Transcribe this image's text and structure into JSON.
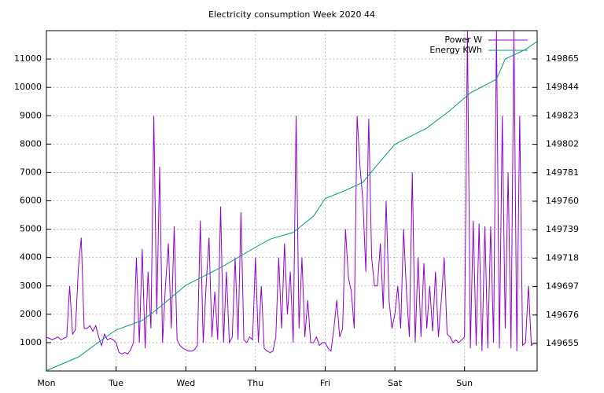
{
  "chart_data": {
    "type": "line",
    "title": "Electricity consumption Week 2020 44",
    "xlim": [
      0,
      169
    ],
    "xticks": [
      {
        "value": 0,
        "label": "Mon"
      },
      {
        "value": 24,
        "label": "Tue"
      },
      {
        "value": 48,
        "label": "Wed"
      },
      {
        "value": 72,
        "label": "Thu"
      },
      {
        "value": 96,
        "label": "Fri"
      },
      {
        "value": 120,
        "label": "Sat"
      },
      {
        "value": 144,
        "label": "Sun"
      }
    ],
    "ylim": [
      0,
      12000
    ],
    "yticks": [
      1000,
      2000,
      3000,
      4000,
      5000,
      6000,
      7000,
      8000,
      9000,
      10000,
      11000
    ],
    "y2lim": [
      149634.7,
      149885.9
    ],
    "y2ticks": [
      149655,
      149676,
      149697,
      149718,
      149739,
      149760,
      149781,
      149802,
      149823,
      149844,
      149865
    ],
    "grid": true,
    "legend": "top-right",
    "series": [
      {
        "name": "Power W",
        "color": "#9400d3",
        "x": [
          0,
          1,
          2,
          3,
          4,
          5,
          6,
          7,
          8,
          9,
          10,
          11,
          12,
          13,
          14,
          15,
          16,
          17,
          18,
          19,
          20,
          21,
          22,
          23,
          24,
          25,
          26,
          27,
          28,
          29,
          30,
          31,
          32,
          33,
          34,
          35,
          36,
          37,
          38,
          39,
          40,
          41,
          42,
          43,
          44,
          45,
          46,
          47,
          48,
          49,
          50,
          51,
          52,
          53,
          54,
          55,
          56,
          57,
          58,
          59,
          60,
          61,
          62,
          63,
          64,
          65,
          66,
          67,
          68,
          69,
          70,
          71,
          72,
          73,
          74,
          75,
          76,
          77,
          78,
          79,
          80,
          81,
          82,
          83,
          84,
          85,
          86,
          87,
          88,
          89,
          90,
          91,
          92,
          93,
          94,
          95,
          96,
          97,
          98,
          99,
          100,
          101,
          102,
          103,
          104,
          105,
          106,
          107,
          108,
          109,
          110,
          111,
          112,
          113,
          114,
          115,
          116,
          117,
          118,
          119,
          120,
          121,
          122,
          123,
          124,
          125,
          126,
          127,
          128,
          129,
          130,
          131,
          132,
          133,
          134,
          135,
          136,
          137,
          138,
          139,
          140,
          141,
          142,
          143,
          144,
          145,
          146,
          147,
          148,
          149,
          150,
          151,
          152,
          153,
          154,
          155,
          156,
          157,
          158,
          159,
          160,
          161,
          162,
          163,
          164,
          165,
          166,
          167,
          168
        ],
        "values": [
          1200,
          1150,
          1100,
          1150,
          1200,
          1100,
          1150,
          1200,
          3000,
          1300,
          1450,
          3600,
          4700,
          1500,
          1500,
          1600,
          1400,
          1600,
          1200,
          900,
          1300,
          1100,
          1150,
          1100,
          1000,
          650,
          600,
          650,
          600,
          750,
          1000,
          4000,
          1000,
          4300,
          800,
          3500,
          1500,
          9000,
          2000,
          7200,
          1000,
          3000,
          4500,
          1500,
          5100,
          1100,
          900,
          800,
          750,
          700,
          700,
          750,
          900,
          5300,
          1000,
          3000,
          4700,
          1200,
          2800,
          1100,
          5800,
          1000,
          3500,
          1000,
          1200,
          4000,
          1100,
          5600,
          1100,
          1000,
          1200,
          1100,
          4000,
          1000,
          3000,
          800,
          700,
          650,
          700,
          1200,
          4000,
          1500,
          4500,
          2000,
          3500,
          1000,
          9000,
          1500,
          4000,
          1200,
          2500,
          1000,
          1000,
          1200,
          900,
          1000,
          1000,
          800,
          700,
          1500,
          2500,
          1200,
          1500,
          5000,
          3300,
          2800,
          1500,
          9000,
          7200,
          6000,
          3500,
          8900,
          4000,
          3000,
          3000,
          4500,
          2200,
          6000,
          2500,
          1500,
          2000,
          3000,
          1500,
          5000,
          2800,
          1200,
          7000,
          1000,
          4000,
          1200,
          3800,
          1500,
          3000,
          1400,
          3500,
          1200,
          2500,
          4000,
          1300,
          1200,
          1000,
          1100,
          1000,
          1100,
          1200,
          12000,
          800,
          5300,
          900,
          5200,
          700,
          5100,
          800,
          5100,
          1000,
          12000,
          800,
          9000,
          1500,
          7000,
          800,
          12000,
          700,
          9000,
          900,
          1000,
          3000,
          900,
          1000
        ]
      },
      {
        "name": "Energy KWh",
        "color": "#009e73",
        "axis": "y2",
        "x": [
          0,
          11,
          18,
          24,
          33,
          38,
          48,
          60,
          72,
          77,
          85,
          92,
          96,
          103,
          109,
          114,
          120,
          131,
          139,
          146,
          155,
          158,
          165,
          169
        ],
        "values": [
          149635,
          149645,
          149656,
          149665,
          149672,
          149680,
          149698,
          149711,
          149726,
          149732,
          149737,
          149749,
          149762,
          149768,
          149774,
          149787,
          149802,
          149814,
          149827,
          149840,
          149850,
          149865,
          149872,
          149878
        ]
      }
    ]
  }
}
